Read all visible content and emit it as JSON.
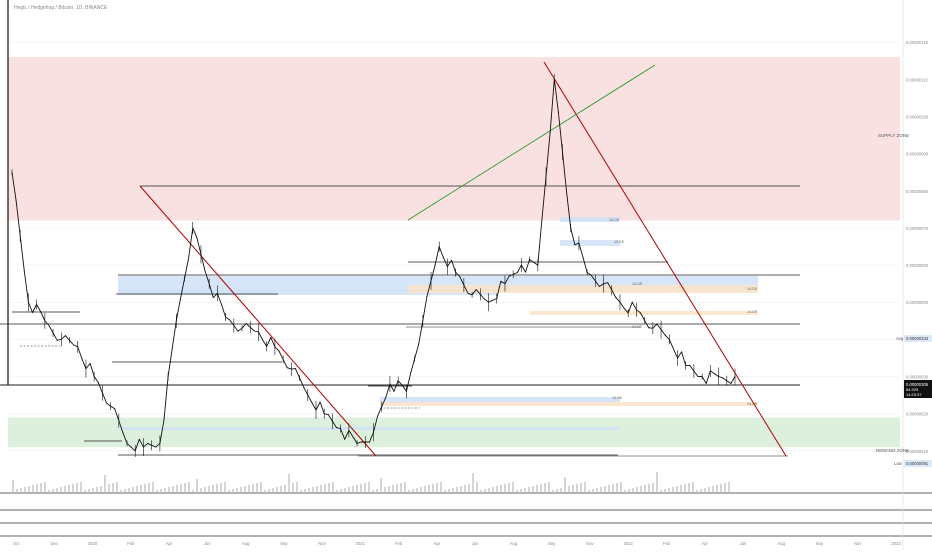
{
  "header": {
    "symbol_line": "Hegic / Hedgehog / Bitcoin, 1D, BINANCE"
  },
  "colors": {
    "supply_zone": "#f8d7d7",
    "demand_zone": "#d4ecd4",
    "supply_line": "#b30000",
    "uptrend_line": "#2a9a2a",
    "candles": "#111111",
    "order_block_blue": "#cfe2f7",
    "order_block_orange": "#fbe3c8",
    "price_tag_bg": "#111111",
    "avg_tag_bg": "#dce9f7",
    "grid": "#eeeeee"
  },
  "chart_data": {
    "type": "line",
    "title": "",
    "xlabel": "",
    "ylabel": "",
    "x_ticks": [
      "Oct",
      "Dec",
      "2020",
      "Feb",
      "Apr",
      "Jun",
      "Aug",
      "Sep",
      "Nov",
      "2021",
      "Feb",
      "Apr",
      "Jun",
      "Aug",
      "Sep",
      "Nov",
      "2022",
      "Feb",
      "Apr",
      "Jun",
      "Aug",
      "Sep",
      "Nov",
      "2023"
    ],
    "y_ticks": [
      1.2e-06,
      1.1e-06,
      1e-06,
      9e-07,
      8e-07,
      7e-07,
      6e-07,
      5e-07,
      4e-07,
      3e-07,
      2e-07,
      1e-07
    ],
    "ylim": [
      0,
      1.3e-06
    ],
    "series": [
      {
        "values": [
          8.5e-07,
          5e-07,
          4.5e-07,
          4e-07,
          3.8e-07,
          3e-07,
          2.2e-07,
          1.2e-07,
          1.1e-07,
          1.2e-07,
          4.5e-07,
          7e-07,
          5.5e-07,
          4.6e-07,
          4.3e-07,
          4.2e-07,
          3.8e-07,
          3.2e-07,
          2.5e-07,
          2e-07,
          1.6e-07,
          1.2e-07,
          1.5e-07,
          2.8e-07,
          2.6e-07,
          4.5e-07,
          6.5e-07,
          5.8e-07,
          5.2e-07,
          5e-07,
          5.5e-07,
          6e-07,
          6e-07,
          1.1e-06,
          7e-07,
          5.8e-07,
          5.5e-07,
          5e-07,
          4.8e-07,
          4.3e-07,
          4e-07,
          3.3e-07,
          3e-07,
          3e-07,
          3e-07
        ]
      }
    ],
    "zones": [
      {
        "label": "SUPPLY ZONE",
        "y_from": 7.2e-07,
        "y_to": 1.16e-06
      },
      {
        "label": "DEMAND ZONE",
        "y_from": 1.1e-07,
        "y_to": 1.9e-07
      }
    ],
    "price_labels": {
      "current": "0.00000305",
      "volume": "64.929",
      "countdown": "14:23:37",
      "avg_label": "Avg",
      "avg_value": "0.00000343",
      "low_label": "Low",
      "low_value": "0.00000091"
    },
    "block_labels": [
      "15-DE",
      "15-DE",
      "14-DE",
      "14-DE",
      "15-DE",
      "14-DE",
      "15-DE",
      "14-DE"
    ]
  }
}
